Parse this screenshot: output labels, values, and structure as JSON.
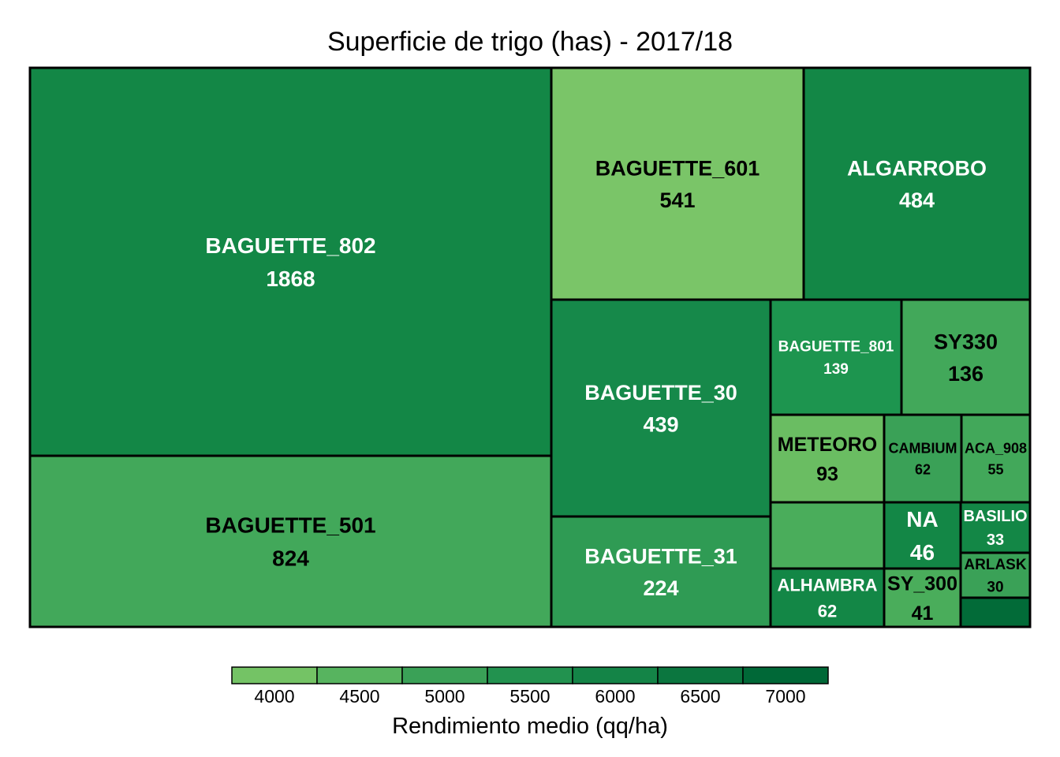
{
  "chart_data": {
    "type": "treemap",
    "title": "Superficie de trigo (has) - 2017/18",
    "legend": {
      "title": "Rendimiento medio (qq/ha)",
      "ticks": [
        "4000",
        "4500",
        "5000",
        "5500",
        "6000",
        "6500",
        "7000"
      ],
      "colors": [
        "#74c365",
        "#57b45f",
        "#3aa157",
        "#22924f",
        "#148447",
        "#0b763f",
        "#006837"
      ],
      "placement": "bottom"
    },
    "items": [
      {
        "name": "BAGUETTE_802",
        "value": "1868",
        "color": "#138746",
        "label_color": "#ffffff",
        "show_label": true
      },
      {
        "name": "BAGUETTE_501",
        "value": "824",
        "color": "#42a85a",
        "label_color": "#000000",
        "show_label": true
      },
      {
        "name": "BAGUETTE_601",
        "value": "541",
        "color": "#7ac568",
        "label_color": "#000000",
        "show_label": true
      },
      {
        "name": "ALGARROBO",
        "value": "484",
        "color": "#138746",
        "label_color": "#ffffff",
        "show_label": true
      },
      {
        "name": "BAGUETTE_30",
        "value": "439",
        "color": "#16894a",
        "label_color": "#ffffff",
        "show_label": true
      },
      {
        "name": "BAGUETTE_31",
        "value": "224",
        "color": "#2f9b54",
        "label_color": "#ffffff",
        "show_label": true
      },
      {
        "name": "BAGUETTE_801",
        "value": "139",
        "color": "#1d954f",
        "label_color": "#ffffff",
        "show_label": true
      },
      {
        "name": "SY330",
        "value": "136",
        "color": "#42a85a",
        "label_color": "#000000",
        "show_label": true
      },
      {
        "name": "METEORO",
        "value": "93",
        "color": "#6abd62",
        "label_color": "#000000",
        "show_label": true
      },
      {
        "name": "CAMBIUM",
        "value": "62",
        "color": "#3aa157",
        "label_color": "#000000",
        "show_label": true
      },
      {
        "name": "ACA_908",
        "value": "55",
        "color": "#42a85a",
        "label_color": "#000000",
        "show_label": true
      },
      {
        "name": "",
        "value": "",
        "color": "#4aad5b",
        "label_color": "#000000",
        "show_label": false
      },
      {
        "name": "NA",
        "value": "46",
        "color": "#138746",
        "label_color": "#ffffff",
        "show_label": true
      },
      {
        "name": "BASILIO",
        "value": "33",
        "color": "#138746",
        "label_color": "#ffffff",
        "show_label": true
      },
      {
        "name": "ALHAMBRA",
        "value": "62",
        "color": "#138746",
        "label_color": "#ffffff",
        "show_label": true
      },
      {
        "name": "SY_300",
        "value": "41",
        "color": "#4aad5b",
        "label_color": "#000000",
        "show_label": true
      },
      {
        "name": "ARLASK",
        "value": "30",
        "color": "#3aa157",
        "label_color": "#000000",
        "show_label": true
      },
      {
        "name": "",
        "value": "",
        "color": "#026b38",
        "label_color": "#000000",
        "show_label": false
      }
    ]
  }
}
